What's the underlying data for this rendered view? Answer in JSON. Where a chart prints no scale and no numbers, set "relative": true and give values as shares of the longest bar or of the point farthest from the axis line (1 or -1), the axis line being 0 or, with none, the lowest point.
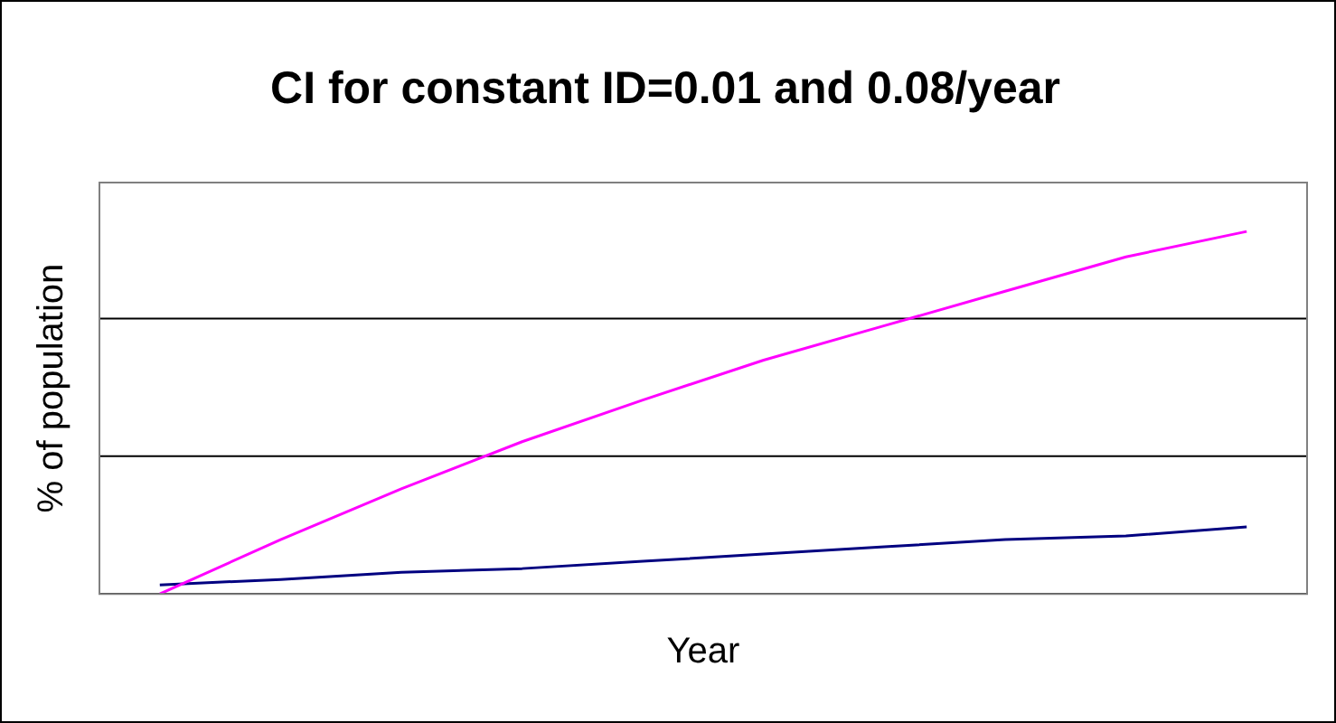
{
  "chart_data": {
    "type": "line",
    "title": "CI for constant ID=0.01 and 0.08/year",
    "xlabel": "Year",
    "ylabel": "% of population",
    "relative": true,
    "legend": false,
    "ref_lines": [
      {
        "axis": "y",
        "value": 0.38,
        "color": "#000000"
      },
      {
        "axis": "y",
        "value": 0.76,
        "color": "#000000"
      }
    ],
    "marker": "none",
    "line_style": "solid",
    "categories": [
      null,
      null,
      null,
      null,
      null,
      null,
      null,
      null,
      null,
      null
    ],
    "series": [
      {
        "color": "#ff00ff",
        "values": [
          0,
          0.15,
          0.29,
          0.42,
          0.535,
          0.645,
          0.74,
          0.835,
          0.93,
          1
        ]
      },
      {
        "color": "#000080",
        "values": [
          0.025,
          0.04,
          0.06,
          0.07,
          0.09,
          0.11,
          0.13,
          0.15,
          0.16,
          0.185
        ]
      }
    ]
  }
}
